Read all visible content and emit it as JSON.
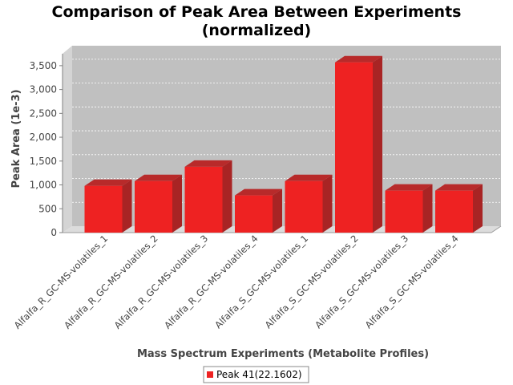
{
  "chart_data": {
    "type": "bar",
    "title_line1": "Comparison of Peak Area Between Experiments",
    "title_line2": "(normalized)",
    "xlabel": "Mass Spectrum Experiments (Metabolite Profiles)",
    "ylabel": "Peak Area (1e-3)",
    "categories": [
      "Alfalfa_R_GC-MS-volatiles_1",
      "Alfalfa_R_GC-MS-volatiles_2",
      "Alfalfa_R_GC-MS-volatiles_3",
      "Alfalfa_R_GC-MS-volatiles_4",
      "Alfalfa_S_GC-MS-volatiles_1",
      "Alfalfa_S_GC-MS-volatiles_2",
      "Alfalfa_S_GC-MS-volatiles_3",
      "Alfalfa_S_GC-MS-volatiles_4"
    ],
    "series": [
      {
        "name": "Peak 41(22.1602)",
        "color": "#ee2222",
        "values": [
          980,
          1080,
          1380,
          780,
          1080,
          3570,
          880,
          880
        ]
      }
    ],
    "ylim": [
      0,
      3750
    ],
    "yticks": [
      0,
      500,
      1000,
      1500,
      2000,
      2500,
      3000,
      3500
    ],
    "ytick_labels": [
      "0",
      "500",
      "1,000",
      "1,500",
      "2,000",
      "2,500",
      "3,000",
      "3,500"
    ],
    "grid": true,
    "legend_position": "bottom",
    "plot_background": "#c0c0c0"
  }
}
